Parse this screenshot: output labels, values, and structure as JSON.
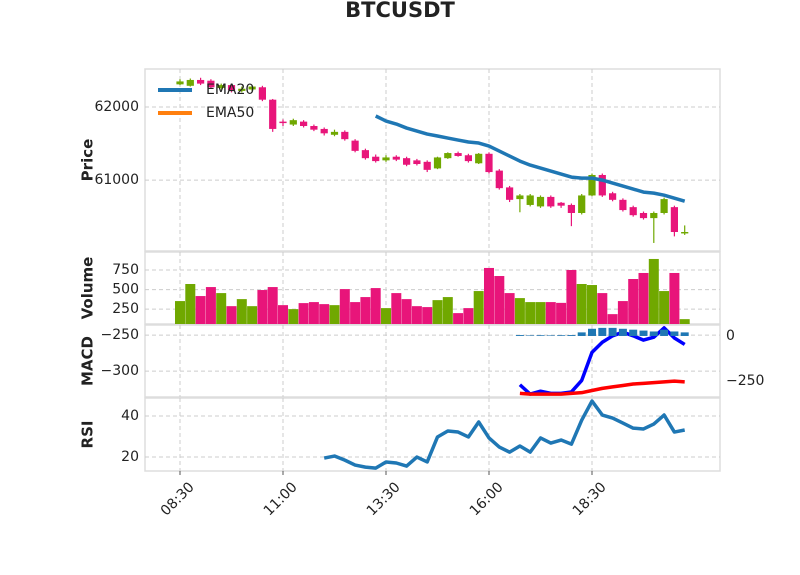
{
  "chart_data": [
    {
      "type": "candlestick",
      "title": "BTCUSDT",
      "ylabel": "Price",
      "x": [
        "08:30",
        "08:45",
        "09:00",
        "09:15",
        "09:30",
        "09:45",
        "10:00",
        "10:15",
        "10:30",
        "10:45",
        "11:00",
        "11:15",
        "11:30",
        "11:45",
        "12:00",
        "12:15",
        "12:30",
        "12:45",
        "13:00",
        "13:15",
        "13:30",
        "13:45",
        "14:00",
        "14:15",
        "14:30",
        "14:45",
        "15:00",
        "15:15",
        "15:30",
        "15:45",
        "16:00",
        "16:15",
        "16:30",
        "16:45",
        "17:00",
        "17:15",
        "17:30",
        "17:45",
        "18:00",
        "18:15",
        "18:30",
        "18:45",
        "19:00",
        "19:15",
        "19:30",
        "19:45",
        "20:00",
        "20:15",
        "20:30",
        "20:45"
      ],
      "open": [
        62310,
        62290,
        62370,
        62360,
        62260,
        62300,
        62220,
        62240,
        62270,
        62100,
        61800,
        61760,
        61800,
        61740,
        61700,
        61620,
        61660,
        61540,
        61410,
        61320,
        61270,
        61320,
        61300,
        61270,
        61250,
        61160,
        61300,
        61370,
        61340,
        61230,
        61360,
        61130,
        60900,
        60740,
        60660,
        60640,
        60770,
        60690,
        60660,
        60550,
        60790,
        61070,
        60820,
        60730,
        60630,
        60550,
        60480,
        60550,
        60630,
        60270
      ],
      "high": [
        62380,
        62390,
        62400,
        62380,
        62320,
        62320,
        62280,
        62300,
        62290,
        62110,
        61830,
        61840,
        61820,
        61760,
        61720,
        61690,
        61680,
        61560,
        61430,
        61350,
        61340,
        61340,
        61320,
        61290,
        61270,
        61320,
        61380,
        61390,
        61360,
        61370,
        61380,
        61150,
        60920,
        60810,
        60810,
        60790,
        60790,
        60700,
        60680,
        60810,
        61090,
        61090,
        60840,
        60750,
        60650,
        60570,
        60570,
        60760,
        60650,
        60380
      ],
      "low": [
        62300,
        62280,
        62300,
        62250,
        62240,
        62200,
        62200,
        62220,
        62080,
        61660,
        61740,
        61740,
        61720,
        61670,
        61610,
        61600,
        61540,
        61380,
        61280,
        61240,
        61250,
        61260,
        61190,
        61200,
        61110,
        61150,
        61290,
        61320,
        61240,
        61220,
        61090,
        60870,
        60700,
        60560,
        60640,
        60620,
        60620,
        60620,
        60370,
        60530,
        60780,
        60770,
        60710,
        60570,
        60500,
        60460,
        60140,
        60530,
        60230,
        60250
      ],
      "close": [
        62350,
        62370,
        62320,
        62270,
        62300,
        62230,
        62250,
        62280,
        62100,
        61700,
        61780,
        61820,
        61740,
        61690,
        61640,
        61660,
        61560,
        61400,
        61300,
        61260,
        61310,
        61280,
        61210,
        61220,
        61140,
        61310,
        61370,
        61330,
        61260,
        61360,
        61110,
        60890,
        60730,
        60790,
        60790,
        60770,
        60640,
        60650,
        60550,
        60790,
        61070,
        60790,
        60730,
        60590,
        60520,
        60480,
        60550,
        60740,
        60290,
        60290
      ],
      "up_color": "#70a800",
      "down_color": "#e8157a",
      "series": [
        {
          "name": "EMA20",
          "color": "#1f77b4",
          "values": [
            null,
            null,
            null,
            null,
            null,
            null,
            null,
            null,
            null,
            null,
            null,
            null,
            null,
            null,
            null,
            null,
            null,
            null,
            null,
            61877,
            61808,
            61767,
            61712,
            61671,
            61630,
            61603,
            61575,
            61548,
            61521,
            61507,
            61466,
            61397,
            61329,
            61260,
            61205,
            61164,
            61123,
            61082,
            61041,
            61027,
            61027,
            61000,
            60959,
            60918,
            60877,
            60836,
            60822,
            60794,
            60753,
            60712
          ]
        },
        {
          "name": "EMA50",
          "color": "#ff7f0e",
          "values": [
            null,
            null,
            null,
            null,
            null,
            null,
            null,
            null,
            null,
            null,
            null,
            null,
            null,
            null,
            null,
            null,
            null,
            null,
            null,
            null,
            null,
            null,
            null,
            null,
            null,
            null,
            null,
            null,
            null,
            null,
            null,
            null,
            null,
            null,
            null,
            null,
            null,
            null,
            null,
            null,
            null,
            null,
            null,
            null,
            null,
            null,
            null,
            null,
            null,
            null
          ]
        }
      ],
      "ylim": [
        60030,
        62520
      ],
      "yticks": [
        61000,
        62000
      ],
      "grid": true,
      "legend": "upper left"
    },
    {
      "type": "bar",
      "ylabel": "Volume",
      "values": [
        353,
        571,
        417,
        532,
        455,
        288,
        378,
        288,
        494,
        532,
        301,
        250,
        327,
        340,
        314,
        301,
        506,
        340,
        404,
        519,
        263,
        455,
        378,
        288,
        276,
        365,
        404,
        199,
        263,
        481,
        776,
        673,
        455,
        391,
        340,
        340,
        340,
        330,
        750,
        571,
        558,
        455,
        186,
        353,
        635,
        712,
        891,
        481,
        712,
        122
      ],
      "ylim": [
        60,
        980
      ],
      "yticks": [
        250,
        500,
        750
      ],
      "grid": true
    },
    {
      "type": "macd",
      "ylabel": "MACD",
      "series": [
        {
          "color": "#0000ff",
          "values": [
            null,
            null,
            null,
            null,
            null,
            null,
            null,
            null,
            null,
            null,
            null,
            null,
            null,
            null,
            null,
            null,
            null,
            null,
            null,
            null,
            null,
            null,
            null,
            null,
            null,
            null,
            null,
            null,
            null,
            null,
            null,
            null,
            null,
            -319,
            -332,
            -328,
            -331,
            -331,
            -329,
            -313,
            -274,
            -260,
            -251,
            -246,
            -251,
            -257,
            -253,
            -240,
            -254,
            -263
          ]
        },
        {
          "color": "#ff0000",
          "values": [
            null,
            null,
            null,
            null,
            null,
            null,
            null,
            null,
            null,
            null,
            null,
            null,
            null,
            null,
            null,
            null,
            null,
            null,
            null,
            null,
            null,
            null,
            null,
            null,
            null,
            null,
            null,
            null,
            null,
            null,
            null,
            null,
            null,
            -331,
            -332,
            -332,
            -332,
            -332,
            -331,
            -330,
            -327,
            -324,
            -322,
            -320,
            -318,
            -317,
            -316,
            -315,
            -314,
            -315
          ]
        },
        {
          "color": "#1f77b4",
          "axis": "y2",
          "type": "bar",
          "values": [
            null,
            null,
            null,
            null,
            null,
            null,
            null,
            null,
            null,
            null,
            null,
            null,
            null,
            null,
            null,
            null,
            null,
            null,
            null,
            null,
            null,
            null,
            null,
            null,
            null,
            null,
            null,
            null,
            null,
            null,
            null,
            null,
            null,
            5,
            3,
            4,
            3,
            4,
            5,
            20,
            40,
            45,
            45,
            40,
            35,
            30,
            25,
            35,
            25,
            20
          ]
        }
      ],
      "ylim": [
        -336,
        -236
      ],
      "yticks": [
        {
          "value": -300,
          "label": "−300"
        },
        {
          "value": -250,
          "label": "−250"
        }
      ],
      "y2lim": [
        -339,
        61
      ],
      "y2ticks": [
        {
          "value": -250,
          "label": "−250"
        },
        0
      ],
      "grid": true
    },
    {
      "type": "line",
      "ylabel": "RSI",
      "series": [
        {
          "color": "#1f77b4",
          "values": [
            null,
            null,
            null,
            null,
            null,
            null,
            null,
            null,
            null,
            null,
            null,
            null,
            null,
            null,
            19.5,
            20.5,
            18.5,
            16.1,
            15.1,
            14.6,
            17.6,
            17.1,
            15.6,
            20.0,
            17.6,
            29.8,
            32.7,
            32.2,
            29.8,
            37.1,
            29.3,
            24.9,
            22.4,
            25.4,
            22.4,
            29.3,
            26.8,
            28.3,
            26.3,
            38.0,
            47.3,
            40.5,
            39.0,
            36.6,
            34.1,
            33.7,
            36.1,
            40.5,
            32.2,
            33.2
          ]
        }
      ],
      "ylim": [
        13.2,
        48.8
      ],
      "yticks": [
        20,
        40
      ],
      "xticks": [
        "08:30",
        "11:00",
        "13:30",
        "16:00",
        "18:30"
      ],
      "grid": true
    }
  ]
}
